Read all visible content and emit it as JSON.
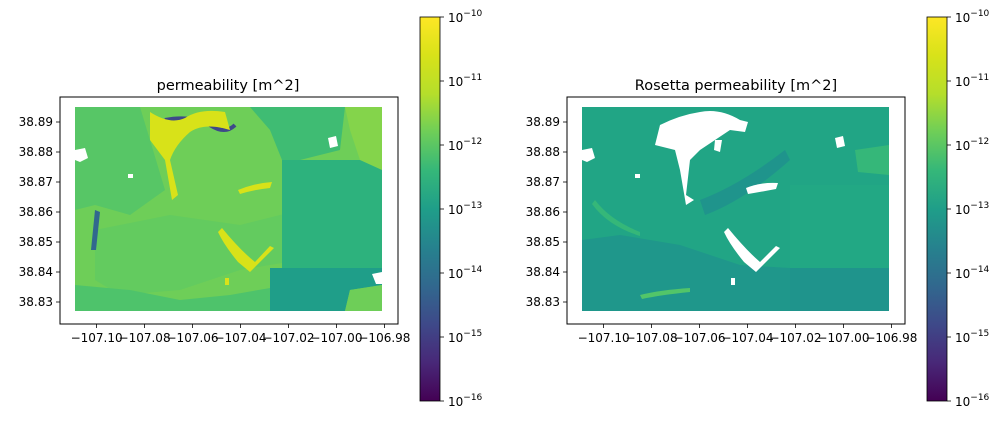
{
  "chart_data": [
    {
      "type": "heatmap",
      "title": "permeability [m^2]",
      "xlabel": "",
      "ylabel": "",
      "x_tick_labels": [
        "−107.10",
        "−107.08",
        "−107.06",
        "−107.04",
        "−107.02",
        "−107.00",
        "−106.98"
      ],
      "y_tick_labels": [
        "38.83",
        "38.84",
        "38.85",
        "38.86",
        "38.87",
        "38.88",
        "38.89"
      ],
      "x_ticks": [
        -107.1,
        -107.08,
        -107.06,
        -107.04,
        -107.02,
        -107.0,
        -106.98
      ],
      "y_ticks": [
        38.83,
        38.84,
        38.85,
        38.86,
        38.87,
        38.88,
        38.89
      ],
      "xlim": [
        -107.109,
        -106.981
      ],
      "ylim": [
        38.827,
        38.895
      ],
      "colormap": "viridis",
      "color_scale": "log",
      "clim": [
        1e-16,
        1e-10
      ],
      "colorbar_tick_labels": [
        "10^-16",
        "10^-15",
        "10^-14",
        "10^-13",
        "10^-12",
        "10^-11",
        "10^-10"
      ],
      "dominant_values": {
        "background": 2e-12,
        "bright_streaks": 5e-11,
        "dark_channel": 1e-14,
        "lower_right": 2e-13
      }
    },
    {
      "type": "heatmap",
      "title": "Rosetta permeability [m^2]",
      "xlabel": "",
      "ylabel": "",
      "x_tick_labels": [
        "−107.10",
        "−107.08",
        "−107.06",
        "−107.04",
        "−107.02",
        "−107.00",
        "−106.98"
      ],
      "y_tick_labels": [
        "38.83",
        "38.84",
        "38.85",
        "38.86",
        "38.87",
        "38.88",
        "38.89"
      ],
      "x_ticks": [
        -107.1,
        -107.08,
        -107.06,
        -107.04,
        -107.02,
        -107.0,
        -106.98
      ],
      "y_ticks": [
        38.83,
        38.84,
        38.85,
        38.86,
        38.87,
        38.88,
        38.89
      ],
      "xlim": [
        -107.109,
        -106.981
      ],
      "ylim": [
        38.827,
        38.895
      ],
      "colormap": "viridis",
      "color_scale": "log",
      "clim": [
        1e-16,
        1e-10
      ],
      "colorbar_tick_labels": [
        "10^-16",
        "10^-15",
        "10^-14",
        "10^-13",
        "10^-12",
        "10^-11",
        "10^-10"
      ],
      "dominant_values": {
        "background": 3e-13,
        "darker_zones": 1.5e-13,
        "green_patches": 1.5e-12,
        "masked_nan": "white"
      }
    }
  ]
}
